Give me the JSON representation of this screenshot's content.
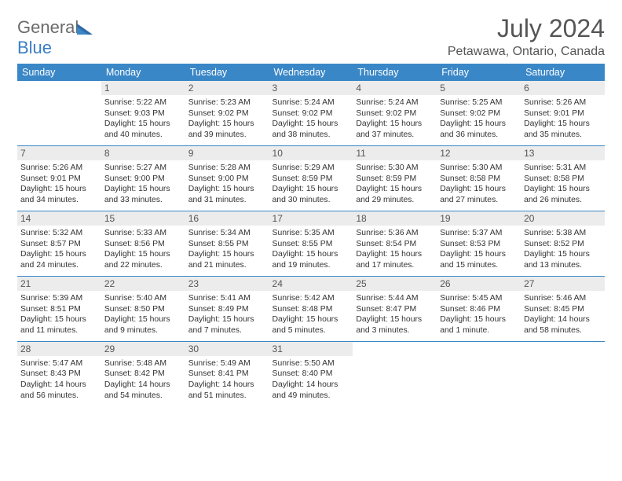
{
  "brand": {
    "name_main": "General",
    "name_accent": "Blue"
  },
  "title": "July 2024",
  "location": "Petawawa, Ontario, Canada",
  "colors": {
    "header_bg": "#3a87c7",
    "header_text": "#ffffff",
    "daynum_bg": "#ececec",
    "body_text": "#333333",
    "rule": "#3a87c7",
    "title_text": "#555555",
    "logo_gray": "#6b6b6b",
    "logo_blue": "#3a7fc4",
    "page_bg": "#ffffff"
  },
  "typography": {
    "title_pt": 32,
    "location_pt": 16,
    "th_pt": 12.5,
    "daynum_pt": 12,
    "info_pt": 10.4
  },
  "day_headers": [
    "Sunday",
    "Monday",
    "Tuesday",
    "Wednesday",
    "Thursday",
    "Friday",
    "Saturday"
  ],
  "weeks": [
    [
      {
        "n": "",
        "lines": []
      },
      {
        "n": "1",
        "lines": [
          "Sunrise: 5:22 AM",
          "Sunset: 9:03 PM",
          "Daylight: 15 hours and 40 minutes."
        ]
      },
      {
        "n": "2",
        "lines": [
          "Sunrise: 5:23 AM",
          "Sunset: 9:02 PM",
          "Daylight: 15 hours and 39 minutes."
        ]
      },
      {
        "n": "3",
        "lines": [
          "Sunrise: 5:24 AM",
          "Sunset: 9:02 PM",
          "Daylight: 15 hours and 38 minutes."
        ]
      },
      {
        "n": "4",
        "lines": [
          "Sunrise: 5:24 AM",
          "Sunset: 9:02 PM",
          "Daylight: 15 hours and 37 minutes."
        ]
      },
      {
        "n": "5",
        "lines": [
          "Sunrise: 5:25 AM",
          "Sunset: 9:02 PM",
          "Daylight: 15 hours and 36 minutes."
        ]
      },
      {
        "n": "6",
        "lines": [
          "Sunrise: 5:26 AM",
          "Sunset: 9:01 PM",
          "Daylight: 15 hours and 35 minutes."
        ]
      }
    ],
    [
      {
        "n": "7",
        "lines": [
          "Sunrise: 5:26 AM",
          "Sunset: 9:01 PM",
          "Daylight: 15 hours and 34 minutes."
        ]
      },
      {
        "n": "8",
        "lines": [
          "Sunrise: 5:27 AM",
          "Sunset: 9:00 PM",
          "Daylight: 15 hours and 33 minutes."
        ]
      },
      {
        "n": "9",
        "lines": [
          "Sunrise: 5:28 AM",
          "Sunset: 9:00 PM",
          "Daylight: 15 hours and 31 minutes."
        ]
      },
      {
        "n": "10",
        "lines": [
          "Sunrise: 5:29 AM",
          "Sunset: 8:59 PM",
          "Daylight: 15 hours and 30 minutes."
        ]
      },
      {
        "n": "11",
        "lines": [
          "Sunrise: 5:30 AM",
          "Sunset: 8:59 PM",
          "Daylight: 15 hours and 29 minutes."
        ]
      },
      {
        "n": "12",
        "lines": [
          "Sunrise: 5:30 AM",
          "Sunset: 8:58 PM",
          "Daylight: 15 hours and 27 minutes."
        ]
      },
      {
        "n": "13",
        "lines": [
          "Sunrise: 5:31 AM",
          "Sunset: 8:58 PM",
          "Daylight: 15 hours and 26 minutes."
        ]
      }
    ],
    [
      {
        "n": "14",
        "lines": [
          "Sunrise: 5:32 AM",
          "Sunset: 8:57 PM",
          "Daylight: 15 hours and 24 minutes."
        ]
      },
      {
        "n": "15",
        "lines": [
          "Sunrise: 5:33 AM",
          "Sunset: 8:56 PM",
          "Daylight: 15 hours and 22 minutes."
        ]
      },
      {
        "n": "16",
        "lines": [
          "Sunrise: 5:34 AM",
          "Sunset: 8:55 PM",
          "Daylight: 15 hours and 21 minutes."
        ]
      },
      {
        "n": "17",
        "lines": [
          "Sunrise: 5:35 AM",
          "Sunset: 8:55 PM",
          "Daylight: 15 hours and 19 minutes."
        ]
      },
      {
        "n": "18",
        "lines": [
          "Sunrise: 5:36 AM",
          "Sunset: 8:54 PM",
          "Daylight: 15 hours and 17 minutes."
        ]
      },
      {
        "n": "19",
        "lines": [
          "Sunrise: 5:37 AM",
          "Sunset: 8:53 PM",
          "Daylight: 15 hours and 15 minutes."
        ]
      },
      {
        "n": "20",
        "lines": [
          "Sunrise: 5:38 AM",
          "Sunset: 8:52 PM",
          "Daylight: 15 hours and 13 minutes."
        ]
      }
    ],
    [
      {
        "n": "21",
        "lines": [
          "Sunrise: 5:39 AM",
          "Sunset: 8:51 PM",
          "Daylight: 15 hours and 11 minutes."
        ]
      },
      {
        "n": "22",
        "lines": [
          "Sunrise: 5:40 AM",
          "Sunset: 8:50 PM",
          "Daylight: 15 hours and 9 minutes."
        ]
      },
      {
        "n": "23",
        "lines": [
          "Sunrise: 5:41 AM",
          "Sunset: 8:49 PM",
          "Daylight: 15 hours and 7 minutes."
        ]
      },
      {
        "n": "24",
        "lines": [
          "Sunrise: 5:42 AM",
          "Sunset: 8:48 PM",
          "Daylight: 15 hours and 5 minutes."
        ]
      },
      {
        "n": "25",
        "lines": [
          "Sunrise: 5:44 AM",
          "Sunset: 8:47 PM",
          "Daylight: 15 hours and 3 minutes."
        ]
      },
      {
        "n": "26",
        "lines": [
          "Sunrise: 5:45 AM",
          "Sunset: 8:46 PM",
          "Daylight: 15 hours and 1 minute."
        ]
      },
      {
        "n": "27",
        "lines": [
          "Sunrise: 5:46 AM",
          "Sunset: 8:45 PM",
          "Daylight: 14 hours and 58 minutes."
        ]
      }
    ],
    [
      {
        "n": "28",
        "lines": [
          "Sunrise: 5:47 AM",
          "Sunset: 8:43 PM",
          "Daylight: 14 hours and 56 minutes."
        ]
      },
      {
        "n": "29",
        "lines": [
          "Sunrise: 5:48 AM",
          "Sunset: 8:42 PM",
          "Daylight: 14 hours and 54 minutes."
        ]
      },
      {
        "n": "30",
        "lines": [
          "Sunrise: 5:49 AM",
          "Sunset: 8:41 PM",
          "Daylight: 14 hours and 51 minutes."
        ]
      },
      {
        "n": "31",
        "lines": [
          "Sunrise: 5:50 AM",
          "Sunset: 8:40 PM",
          "Daylight: 14 hours and 49 minutes."
        ]
      },
      {
        "n": "",
        "lines": []
      },
      {
        "n": "",
        "lines": []
      },
      {
        "n": "",
        "lines": []
      }
    ]
  ]
}
